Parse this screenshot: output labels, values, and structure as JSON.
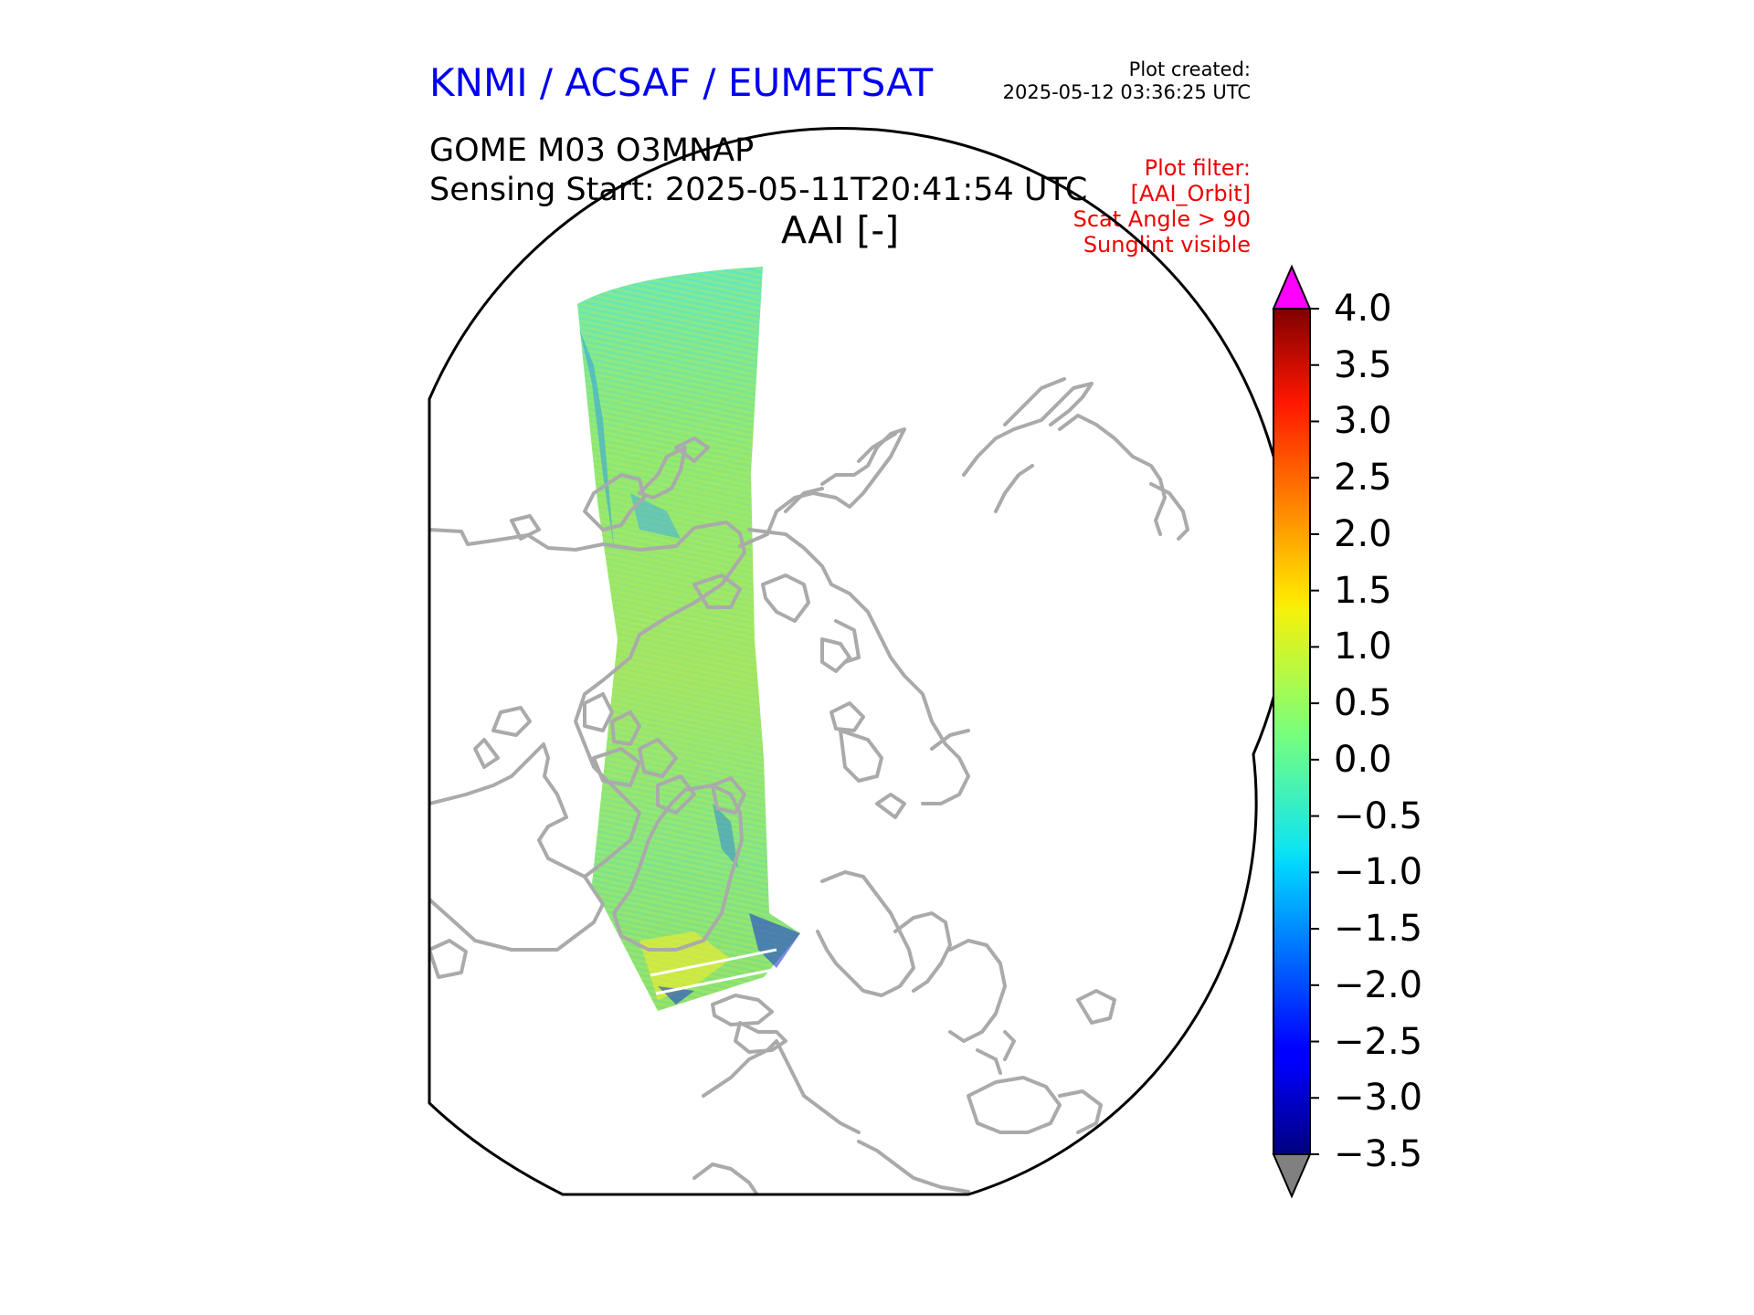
{
  "header": {
    "organization": "KNMI / ACSAF / EUMETSAT",
    "created_label": "Plot created:",
    "created_time": "2025-05-12 03:36:25 UTC",
    "product": "GOME M03 O3MNAP",
    "sensing_start": "Sensing Start: 2025-05-11T20:41:54 UTC",
    "variable": "AAI [-]"
  },
  "filters": [
    "Plot filter:",
    "[AAI_Orbit]",
    "Scat Angle > 90",
    "Sunglint visible"
  ],
  "colorbar": {
    "min": -3.5,
    "max": 4.0,
    "ticks": [
      "4.0",
      "3.5",
      "3.0",
      "2.5",
      "2.0",
      "1.5",
      "1.0",
      "0.5",
      "0.0",
      "−0.5",
      "−1.0",
      "−1.5",
      "−2.0",
      "−2.5",
      "−3.0",
      "−3.5"
    ],
    "over_color": "#ff00ff",
    "under_color": "#808080",
    "colormap": "jet"
  },
  "map": {
    "projection": "north-polar-stereographic",
    "coastline_color": "#aaaaaa",
    "swath_dominant_color": "#7fe57a"
  }
}
